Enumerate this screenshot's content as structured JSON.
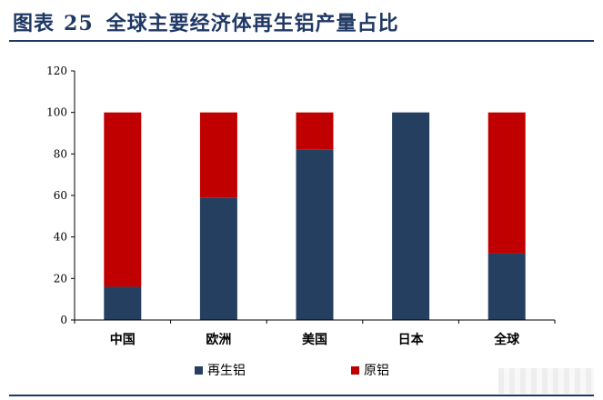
{
  "header": {
    "figure_label": "图表",
    "figure_number": "25",
    "title": "全球主要经济体再生铝产量占比"
  },
  "colors": {
    "accent": "#1f3864",
    "recycled": "#243f60",
    "primary": "#c00000",
    "axis": "#000000"
  },
  "chart_data": {
    "type": "bar",
    "stacked": true,
    "categories": [
      "中国",
      "欧洲",
      "美国",
      "日本",
      "全球"
    ],
    "series": [
      {
        "name": "再生铝",
        "values": [
          16,
          59,
          82,
          100,
          32
        ],
        "color": "#243f60"
      },
      {
        "name": "原铝",
        "values": [
          84,
          41,
          18,
          0,
          68
        ],
        "color": "#c00000"
      }
    ],
    "ylim": [
      0,
      120
    ],
    "yticks": [
      "0",
      "20",
      "40",
      "60",
      "80",
      "100",
      "120"
    ],
    "grid": false,
    "legend_position": "bottom"
  }
}
